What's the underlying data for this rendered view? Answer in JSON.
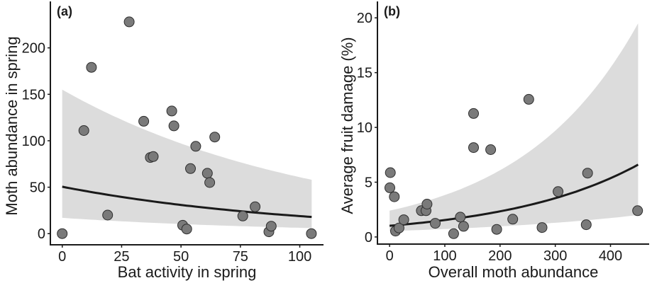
{
  "figure": {
    "colors": {
      "point_fill": "#7a7a7a",
      "point_stroke": "#2e2e2e",
      "band_fill": "#dcdcdc",
      "line": "#1a1a1a",
      "axis": "#1a1a1a"
    }
  },
  "chart_data": [
    {
      "type": "scatter",
      "panel_label": "(a)",
      "title": "",
      "xlabel": "Bat activity in spring",
      "ylabel": "Moth abundance in spring",
      "xlim": [
        -5,
        110
      ],
      "ylim": [
        -12,
        250
      ],
      "xticks": [
        0,
        25,
        50,
        75,
        100
      ],
      "xtick_labels": [
        "0",
        "25",
        "50",
        "75",
        "100"
      ],
      "yticks": [
        0,
        50,
        100,
        150,
        200
      ],
      "ytick_labels": [
        "0",
        "50",
        "100",
        "150",
        "200"
      ],
      "grid": false,
      "legend": "none",
      "points": [
        {
          "x": 0,
          "y": 0
        },
        {
          "x": 9.1,
          "y": 111
        },
        {
          "x": 12.3,
          "y": 179
        },
        {
          "x": 19.1,
          "y": 20
        },
        {
          "x": 28.2,
          "y": 228
        },
        {
          "x": 34.3,
          "y": 121
        },
        {
          "x": 37.1,
          "y": 82
        },
        {
          "x": 38.3,
          "y": 83
        },
        {
          "x": 46.1,
          "y": 132
        },
        {
          "x": 47.0,
          "y": 116
        },
        {
          "x": 50.7,
          "y": 9
        },
        {
          "x": 52.4,
          "y": 5
        },
        {
          "x": 54.0,
          "y": 70
        },
        {
          "x": 56.2,
          "y": 94
        },
        {
          "x": 61.1,
          "y": 65
        },
        {
          "x": 62.1,
          "y": 55
        },
        {
          "x": 64.2,
          "y": 104
        },
        {
          "x": 76.0,
          "y": 19
        },
        {
          "x": 81.2,
          "y": 29
        },
        {
          "x": 87.0,
          "y": 2
        },
        {
          "x": 88.0,
          "y": 8
        },
        {
          "x": 104.9,
          "y": 0
        }
      ],
      "fit": {
        "model": "exponential",
        "x_range": [
          0,
          105
        ],
        "line": {
          "start": 50.5,
          "end": 18
        },
        "ci_lower": {
          "start": 17,
          "end": 6
        },
        "ci_upper": {
          "start": 155,
          "end": 58
        }
      }
    },
    {
      "type": "scatter",
      "panel_label": "(b)",
      "title": "",
      "xlabel": "Overall moth abundance",
      "ylabel": "Average fruit damage (%)",
      "xlim": [
        -22,
        470
      ],
      "ylim": [
        -0.65,
        21.5
      ],
      "xticks": [
        0,
        100,
        200,
        300,
        400
      ],
      "xtick_labels": [
        "0",
        "100",
        "200",
        "300",
        "400"
      ],
      "yticks": [
        0,
        5,
        10,
        15,
        20
      ],
      "ytick_labels": [
        "0",
        "5",
        "10",
        "15",
        "20"
      ],
      "grid": false,
      "legend": "none",
      "points": [
        {
          "x": 1.4,
          "y": 5.87
        },
        {
          "x": 0.5,
          "y": 4.49
        },
        {
          "x": 8.6,
          "y": 3.67
        },
        {
          "x": 10.7,
          "y": 0.54
        },
        {
          "x": 17,
          "y": 0.82
        },
        {
          "x": 25.6,
          "y": 1.57
        },
        {
          "x": 57.5,
          "y": 2.4
        },
        {
          "x": 66,
          "y": 2.4
        },
        {
          "x": 67.8,
          "y": 3.0
        },
        {
          "x": 82.7,
          "y": 1.25
        },
        {
          "x": 116,
          "y": 0.3
        },
        {
          "x": 128,
          "y": 1.81
        },
        {
          "x": 134,
          "y": 0.97
        },
        {
          "x": 152,
          "y": 11.27
        },
        {
          "x": 152,
          "y": 8.16
        },
        {
          "x": 183,
          "y": 7.97
        },
        {
          "x": 194,
          "y": 0.69
        },
        {
          "x": 223,
          "y": 1.62
        },
        {
          "x": 252,
          "y": 12.56
        },
        {
          "x": 276,
          "y": 0.86
        },
        {
          "x": 305,
          "y": 4.14
        },
        {
          "x": 356,
          "y": 1.12
        },
        {
          "x": 358.5,
          "y": 5.83
        },
        {
          "x": 449,
          "y": 2.4
        }
      ],
      "fit": {
        "model": "exponential",
        "x_range": [
          0,
          450
        ],
        "line": {
          "start": 1.02,
          "end": 6.6
        },
        "ci_lower": {
          "start": 0.54,
          "end": 2.0
        },
        "ci_upper": {
          "start": 2.4,
          "end": 19.5
        }
      }
    }
  ]
}
